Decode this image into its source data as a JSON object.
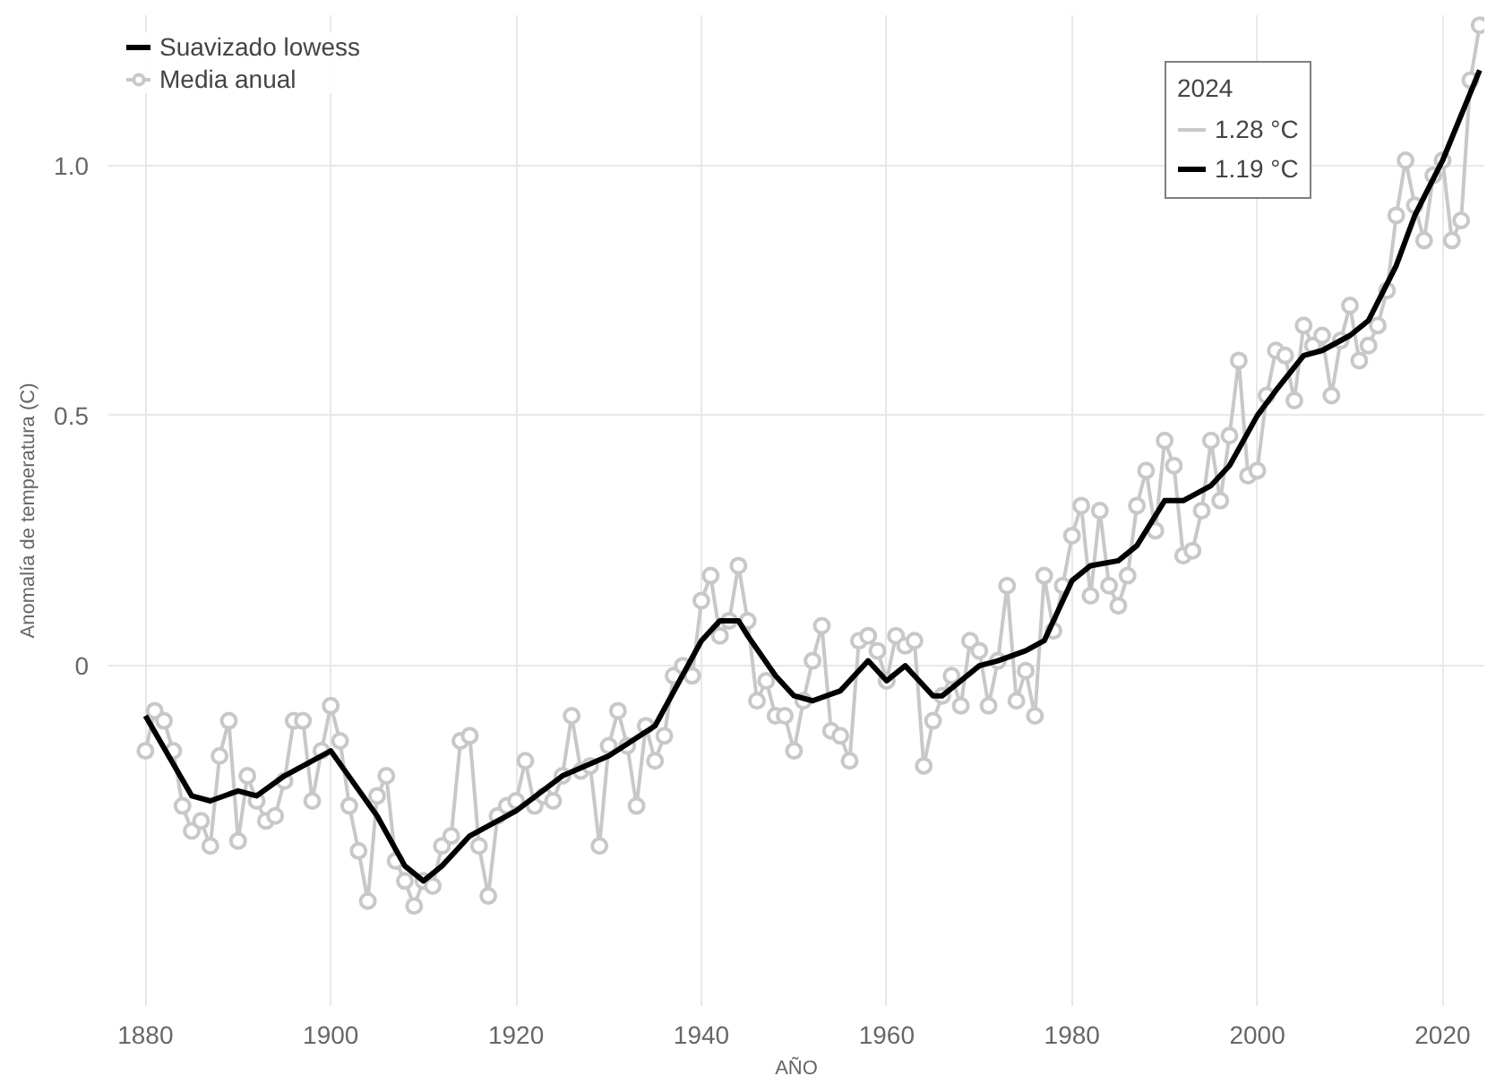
{
  "chart_data": {
    "type": "line",
    "xlabel": "AÑO",
    "ylabel": "Anomalía de temperatura (C)",
    "xlim": [
      1876,
      2024.5
    ],
    "ylim": [
      -0.68,
      1.3
    ],
    "xticks": [
      1880,
      1900,
      1920,
      1940,
      1960,
      1980,
      2000,
      2020
    ],
    "yticks": [
      {
        "value": 0,
        "label": "0"
      },
      {
        "value": 0.5,
        "label": "0.5"
      },
      {
        "value": 1.0,
        "label": "1.0"
      }
    ],
    "grid": true,
    "legend": "top left",
    "series": [
      {
        "name": "Suavizado lowess",
        "color": "#000000",
        "marker": "none",
        "x": [
          1880,
          1885,
          1887,
          1890,
          1892,
          1895,
          1900,
          1905,
          1908,
          1910,
          1912,
          1915,
          1920,
          1925,
          1930,
          1935,
          1940,
          1942,
          1944,
          1945,
          1948,
          1950,
          1952,
          1955,
          1958,
          1960,
          1962,
          1965,
          1966,
          1970,
          1972,
          1975,
          1977,
          1980,
          1982,
          1985,
          1987,
          1990,
          1992,
          1995,
          1997,
          2000,
          2002,
          2005,
          2007,
          2010,
          2012,
          2015,
          2017,
          2020,
          2022,
          2024
        ],
        "values": [
          -0.1,
          -0.26,
          -0.27,
          -0.25,
          -0.26,
          -0.22,
          -0.17,
          -0.3,
          -0.4,
          -0.43,
          -0.4,
          -0.34,
          -0.29,
          -0.22,
          -0.18,
          -0.12,
          0.05,
          0.09,
          0.09,
          0.06,
          -0.02,
          -0.06,
          -0.07,
          -0.05,
          0.01,
          -0.03,
          0.0,
          -0.06,
          -0.06,
          0.0,
          0.01,
          0.03,
          0.05,
          0.17,
          0.2,
          0.21,
          0.24,
          0.33,
          0.33,
          0.36,
          0.4,
          0.5,
          0.55,
          0.62,
          0.63,
          0.66,
          0.69,
          0.8,
          0.9,
          1.01,
          1.1,
          1.19
        ]
      },
      {
        "name": "Media anual",
        "color": "#c8c8c8",
        "marker": "circle",
        "x": [
          1880,
          1881,
          1882,
          1883,
          1884,
          1885,
          1886,
          1887,
          1888,
          1889,
          1890,
          1891,
          1892,
          1893,
          1894,
          1895,
          1896,
          1897,
          1898,
          1899,
          1900,
          1901,
          1902,
          1903,
          1904,
          1905,
          1906,
          1907,
          1908,
          1909,
          1910,
          1911,
          1912,
          1913,
          1914,
          1915,
          1916,
          1917,
          1918,
          1919,
          1920,
          1921,
          1922,
          1923,
          1924,
          1925,
          1926,
          1927,
          1928,
          1929,
          1930,
          1931,
          1932,
          1933,
          1934,
          1935,
          1936,
          1937,
          1938,
          1939,
          1940,
          1941,
          1942,
          1943,
          1944,
          1945,
          1946,
          1947,
          1948,
          1949,
          1950,
          1951,
          1952,
          1953,
          1954,
          1955,
          1956,
          1957,
          1958,
          1959,
          1960,
          1961,
          1962,
          1963,
          1964,
          1965,
          1966,
          1967,
          1968,
          1969,
          1970,
          1971,
          1972,
          1973,
          1974,
          1975,
          1976,
          1977,
          1978,
          1979,
          1980,
          1981,
          1982,
          1983,
          1984,
          1985,
          1986,
          1987,
          1988,
          1989,
          1990,
          1991,
          1992,
          1993,
          1994,
          1995,
          1996,
          1997,
          1998,
          1999,
          2000,
          2001,
          2002,
          2003,
          2004,
          2005,
          2006,
          2007,
          2008,
          2009,
          2010,
          2011,
          2012,
          2013,
          2014,
          2015,
          2016,
          2017,
          2018,
          2019,
          2020,
          2021,
          2022,
          2023,
          2024
        ],
        "values": [
          -0.17,
          -0.09,
          -0.11,
          -0.17,
          -0.28,
          -0.33,
          -0.31,
          -0.36,
          -0.18,
          -0.11,
          -0.35,
          -0.22,
          -0.27,
          -0.31,
          -0.3,
          -0.23,
          -0.11,
          -0.11,
          -0.27,
          -0.17,
          -0.08,
          -0.15,
          -0.28,
          -0.37,
          -0.47,
          -0.26,
          -0.22,
          -0.39,
          -0.43,
          -0.48,
          -0.43,
          -0.44,
          -0.36,
          -0.34,
          -0.15,
          -0.14,
          -0.36,
          -0.46,
          -0.3,
          -0.28,
          -0.27,
          -0.19,
          -0.28,
          -0.26,
          -0.27,
          -0.22,
          -0.1,
          -0.21,
          -0.2,
          -0.36,
          -0.16,
          -0.09,
          -0.16,
          -0.28,
          -0.12,
          -0.19,
          -0.14,
          -0.02,
          0.0,
          -0.02,
          0.13,
          0.18,
          0.06,
          0.09,
          0.2,
          0.09,
          -0.07,
          -0.03,
          -0.1,
          -0.1,
          -0.17,
          -0.07,
          0.01,
          0.08,
          -0.13,
          -0.14,
          -0.19,
          0.05,
          0.06,
          0.03,
          -0.03,
          0.06,
          0.04,
          0.05,
          -0.2,
          -0.11,
          -0.06,
          -0.02,
          -0.08,
          0.05,
          0.03,
          -0.08,
          0.01,
          0.16,
          -0.07,
          -0.01,
          -0.1,
          0.18,
          0.07,
          0.16,
          0.26,
          0.32,
          0.14,
          0.31,
          0.16,
          0.12,
          0.18,
          0.32,
          0.39,
          0.27,
          0.45,
          0.4,
          0.22,
          0.23,
          0.31,
          0.45,
          0.33,
          0.46,
          0.61,
          0.38,
          0.39,
          0.54,
          0.63,
          0.62,
          0.53,
          0.68,
          0.64,
          0.66,
          0.54,
          0.65,
          0.72,
          0.61,
          0.64,
          0.68,
          0.75,
          0.9,
          1.01,
          0.92,
          0.85,
          0.98,
          1.01,
          0.85,
          0.89,
          1.17,
          1.28
        ]
      }
    ],
    "annotations": [
      "2024",
      "1.28 °C",
      "1.19 °C"
    ]
  }
}
